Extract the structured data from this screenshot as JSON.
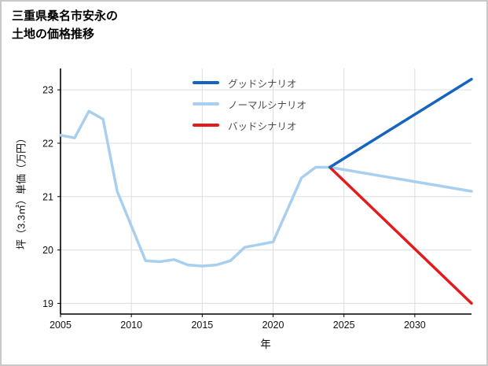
{
  "page": {
    "title_line1": "三重県桑名市安永の",
    "title_line2": "土地の価格推移"
  },
  "chart_data": {
    "type": "line",
    "title": "三重県桑名市安永の土地の価格推移",
    "xlabel": "年",
    "ylabel": "坪（3.3㎡）単価（万円）",
    "unit": "万円",
    "xlim": [
      2005,
      2034
    ],
    "ylim": [
      18.8,
      23.4
    ],
    "xticks": [
      2005,
      2010,
      2015,
      2020,
      2025,
      2030
    ],
    "yticks": [
      19,
      20,
      21,
      22,
      23
    ],
    "grid": true,
    "grid_color": "#dcdce4",
    "axis_color": "#000000",
    "legend_position": "top-center-inside",
    "series": [
      {
        "name": "グッドシナリオ",
        "color": "#1565c0",
        "width": 3.5,
        "points": [
          [
            2024,
            21.55
          ],
          [
            2034,
            23.2
          ]
        ]
      },
      {
        "name": "ノーマルシナリオ",
        "color": "#a9cfee",
        "width": 3.5,
        "points": [
          [
            2005,
            22.15
          ],
          [
            2006,
            22.1
          ],
          [
            2007,
            22.6
          ],
          [
            2008,
            22.45
          ],
          [
            2009,
            21.1
          ],
          [
            2010,
            20.45
          ],
          [
            2011,
            19.8
          ],
          [
            2012,
            19.78
          ],
          [
            2013,
            19.82
          ],
          [
            2014,
            19.72
          ],
          [
            2015,
            19.7
          ],
          [
            2016,
            19.72
          ],
          [
            2017,
            19.8
          ],
          [
            2018,
            20.05
          ],
          [
            2019,
            20.1
          ],
          [
            2020,
            20.15
          ],
          [
            2021,
            20.75
          ],
          [
            2022,
            21.35
          ],
          [
            2023,
            21.55
          ],
          [
            2024,
            21.55
          ],
          [
            2034,
            21.1
          ]
        ]
      },
      {
        "name": "バッドシナリオ",
        "color": "#e41a1c",
        "width": 3.5,
        "points": [
          [
            2024,
            21.55
          ],
          [
            2034,
            19.0
          ]
        ]
      }
    ]
  }
}
